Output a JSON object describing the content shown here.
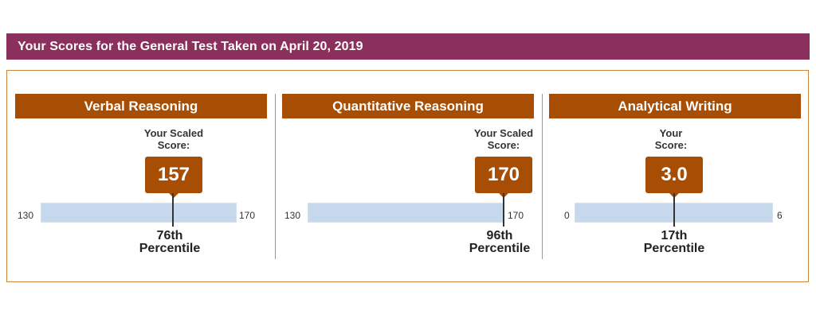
{
  "header": {
    "title": "Your Scores for the General Test Taken on April 20, 2019"
  },
  "sections": [
    {
      "title": "Verbal Reasoning",
      "score_label_line1": "Your Scaled",
      "score_label_line2": "Score:",
      "score": "157",
      "scale_min": "130",
      "scale_max": "170",
      "score_fraction": 0.675,
      "percentile_line1": "76th",
      "percentile_line2": "Percentile"
    },
    {
      "title": "Quantitative Reasoning",
      "score_label_line1": "Your Scaled",
      "score_label_line2": "Score:",
      "score": "170",
      "scale_min": "130",
      "scale_max": "170",
      "score_fraction": 1.0,
      "percentile_line1": "96th",
      "percentile_line2": "Percentile"
    },
    {
      "title": "Analytical Writing",
      "score_label_line1": "Your",
      "score_label_line2": "Score:",
      "score": "3.0",
      "scale_min": "0",
      "scale_max": "6",
      "score_fraction": 0.5,
      "percentile_line1": "17th",
      "percentile_line2": "Percentile"
    }
  ],
  "colors": {
    "header_bg": "#8b2f5c",
    "section_bg": "#a84e04",
    "bar_fill": "#c6d9ec",
    "box_border": "#c9853c"
  }
}
